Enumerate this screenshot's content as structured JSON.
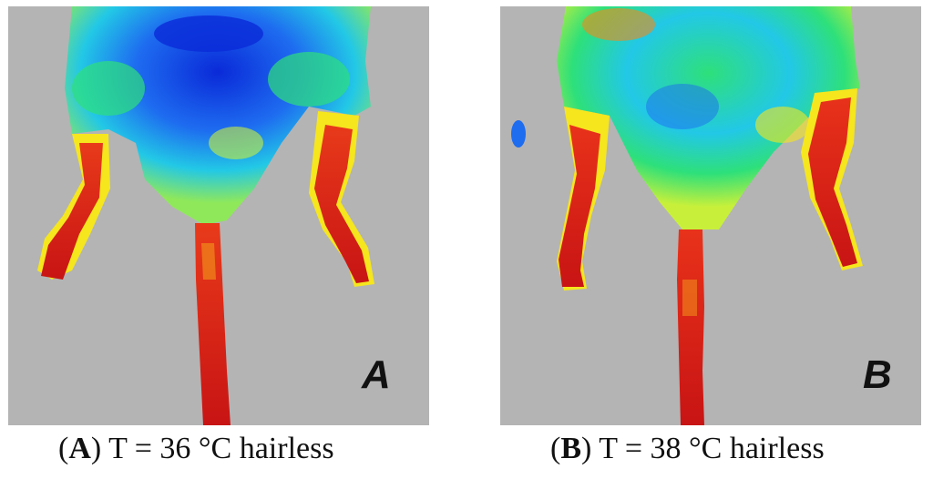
{
  "panels": [
    {
      "letter": "A",
      "caption_letter": "A",
      "caption_text": " T = 36 °C hairless",
      "thermal_palette": [
        "#0a2ad8",
        "#1e6cf0",
        "#22c8e6",
        "#2ee07a",
        "#c8f03a",
        "#f5e61e",
        "#f08a1a",
        "#e8321a",
        "#c81414"
      ]
    },
    {
      "letter": "B",
      "caption_letter": "B",
      "caption_text": " T = 38 °C hairless",
      "thermal_palette": [
        "#0a2ad8",
        "#1e6cf0",
        "#22c8e6",
        "#2ee07a",
        "#c8f03a",
        "#f5e61e",
        "#f08a1a",
        "#e8321a",
        "#c81414"
      ]
    }
  ]
}
